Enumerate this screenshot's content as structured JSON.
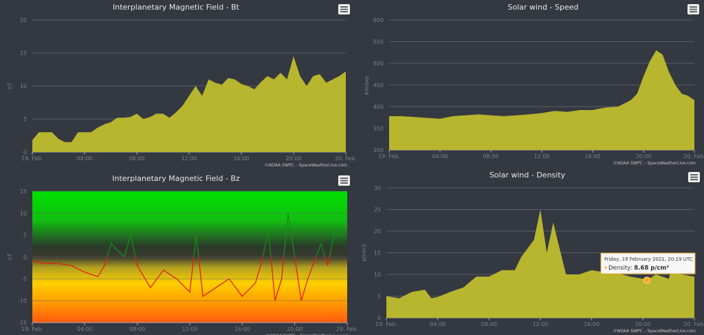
{
  "menu_icon": "hamburger-menu-icon",
  "credit": "©NOAA SWPC – SpaceWeatherLive.com",
  "fill_color": "#b8b52e",
  "chart_data": [
    {
      "id": "bt",
      "type": "area",
      "title": "Interplanetary Magnetic Field - Bt",
      "ylabel": "nT",
      "ylim": [
        0,
        20
      ],
      "yticks": [
        0,
        5,
        10,
        15,
        20
      ],
      "xticks": [
        "19. Feb.",
        "04:00",
        "08:00",
        "12:00",
        "16:00",
        "20:00",
        "20. Feb."
      ],
      "xlim_hours": [
        0,
        24
      ],
      "x": [
        0,
        0.5,
        1,
        1.5,
        2,
        2.5,
        3,
        3.5,
        4,
        4.5,
        5,
        5.5,
        6,
        6.5,
        7,
        7.5,
        8,
        8.5,
        9,
        9.5,
        10,
        10.5,
        11,
        11.5,
        12,
        12.5,
        13,
        13.5,
        14,
        14.5,
        15,
        15.5,
        16,
        16.5,
        17,
        17.5,
        18,
        18.5,
        19,
        19.5,
        20,
        20.5,
        21,
        21.5,
        22,
        22.5,
        23,
        23.5,
        24
      ],
      "y": [
        1.8,
        3,
        3,
        3,
        2,
        1.5,
        1.5,
        3,
        3,
        3,
        3.7,
        4.2,
        4.5,
        5.2,
        5.2,
        5.3,
        5.8,
        5,
        5.3,
        5.8,
        5.8,
        5.2,
        6,
        7,
        8.5,
        10,
        8.5,
        11,
        10.5,
        10.2,
        11.2,
        11,
        10.3,
        10,
        9.5,
        10.6,
        11.5,
        11,
        12,
        11,
        14.5,
        11.5,
        10,
        11.5,
        11.8,
        10.5,
        11,
        11.5,
        12.2
      ]
    },
    {
      "id": "speed",
      "type": "area",
      "title": "Solar wind - Speed",
      "ylabel": "km/sec",
      "ylim": [
        300,
        600
      ],
      "yticks": [
        300,
        350,
        400,
        450,
        500,
        550,
        600
      ],
      "xticks": [
        "19. Feb.",
        "04:00",
        "08:00",
        "12:00",
        "16:00",
        "20:00",
        "20. Feb."
      ],
      "xlim_hours": [
        0,
        24
      ],
      "x": [
        0,
        1,
        2,
        3,
        4,
        5,
        6,
        7,
        8,
        9,
        10,
        11,
        12,
        13,
        14,
        15,
        16,
        17,
        18,
        19,
        19.5,
        20,
        20.5,
        21,
        21.5,
        22,
        22.5,
        23,
        23.5,
        24
      ],
      "y": [
        378,
        378,
        376,
        374,
        372,
        378,
        380,
        382,
        380,
        378,
        380,
        382,
        385,
        390,
        388,
        392,
        392,
        398,
        400,
        415,
        430,
        470,
        505,
        530,
        520,
        480,
        450,
        430,
        425,
        415
      ]
    },
    {
      "id": "bz",
      "type": "line",
      "title": "Interplanetary Magnetic Field - Bz",
      "ylabel": "nT",
      "ylim": [
        -15,
        15
      ],
      "yticks": [
        -15,
        -10,
        -5,
        0,
        5,
        10,
        15
      ],
      "xticks": [
        "19. Feb.",
        "04:00",
        "08:00",
        "12:00",
        "16:00",
        "20:00",
        "20. Feb."
      ],
      "xlim_hours": [
        0,
        24
      ],
      "x": [
        0,
        1,
        2,
        3,
        4,
        5,
        5.5,
        6,
        7,
        7.5,
        8,
        9,
        10,
        11,
        12,
        12.5,
        13,
        14,
        15,
        16,
        17,
        17.5,
        18,
        18.5,
        19,
        19.5,
        20,
        20.5,
        21,
        22,
        22.5,
        23,
        24
      ],
      "y": [
        -1,
        -1.5,
        -1.5,
        -2,
        -3.5,
        -4.5,
        -2,
        3,
        0,
        5,
        -2,
        -7,
        -3,
        -5,
        -8,
        5,
        -9,
        -7,
        -5,
        -9,
        -6,
        -1,
        6,
        -10,
        -5,
        10,
        0,
        -10,
        -5,
        3,
        -2,
        5,
        5
      ],
      "colors": {
        "positive": "#1a8a1a",
        "negative": "#e02010"
      }
    },
    {
      "id": "density",
      "type": "area",
      "title": "Solar wind - Density",
      "ylabel": "p/cm3",
      "ylim": [
        0,
        30
      ],
      "yticks": [
        0,
        5,
        10,
        15,
        20,
        25,
        30
      ],
      "xticks": [
        "19. Feb.",
        "04:00",
        "08:00",
        "12:00",
        "16:00",
        "20:00",
        "20. Feb."
      ],
      "xlim_hours": [
        0,
        24
      ],
      "x": [
        0,
        1,
        2,
        3,
        3.5,
        4,
        5,
        6,
        7,
        8,
        9,
        10,
        10.5,
        11,
        11.5,
        12,
        12.5,
        13,
        13.5,
        14,
        15,
        16,
        17,
        18,
        19,
        20,
        20.3,
        21,
        22,
        22.5,
        23,
        24
      ],
      "y": [
        5,
        4.5,
        6,
        6.5,
        4.5,
        4.8,
        6,
        7,
        9.5,
        9.5,
        11,
        11,
        14,
        16,
        18,
        25,
        15,
        22,
        16,
        10,
        10,
        11,
        10.5,
        10.3,
        9.5,
        9,
        8.68,
        10,
        9,
        14,
        10,
        9.5
      ],
      "tooltip": {
        "date": "Friday, 19 February 2021, 20:19 UTC",
        "label": "Density:",
        "value": "8.68 p/cm³",
        "x_hours": 20.3,
        "y": 8.68
      }
    }
  ]
}
